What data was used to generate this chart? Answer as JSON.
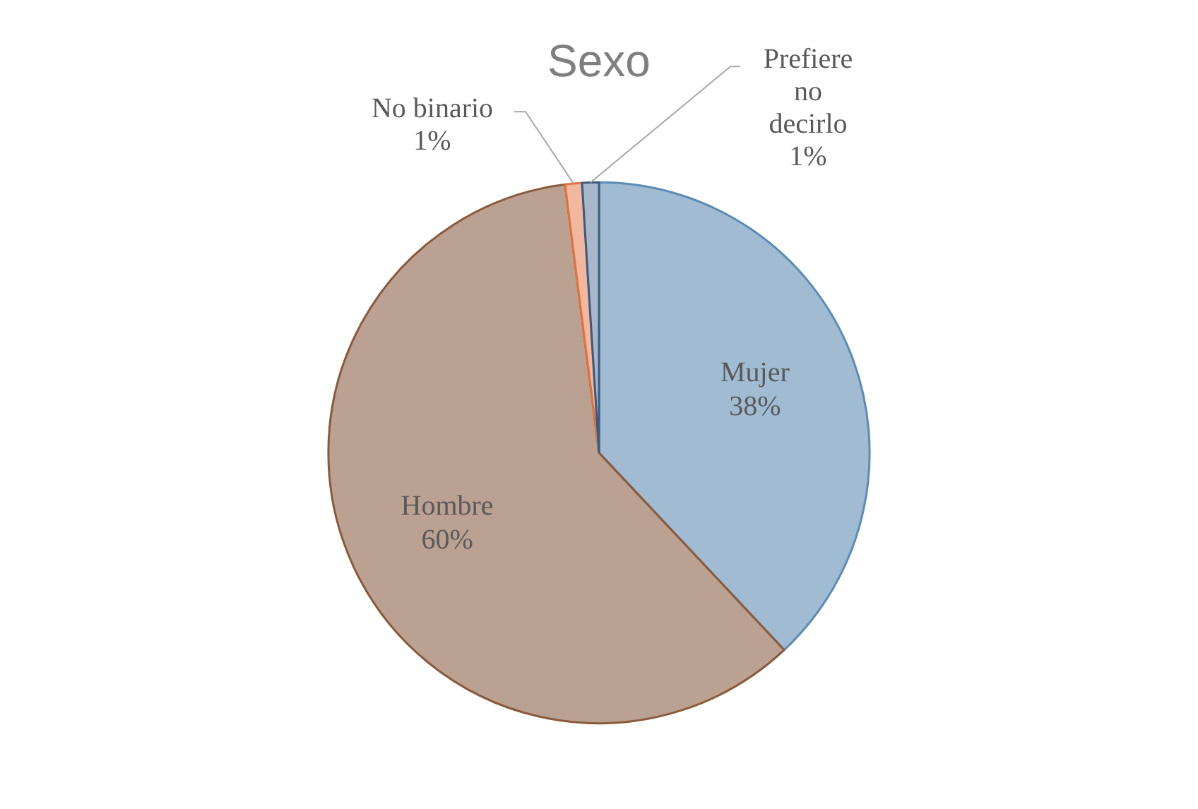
{
  "chart_data": {
    "type": "pie",
    "title": "Sexo",
    "categories": [
      "Mujer",
      "Hombre",
      "No binario",
      "Prefiere no decirlo"
    ],
    "values": [
      38,
      60,
      1,
      1
    ],
    "value_labels": [
      "38%",
      "60%",
      "1%",
      "1%"
    ],
    "colors": [
      "#a0bbd2",
      "#bba192",
      "#f2b79f",
      "#a8b8ca"
    ],
    "legend": false
  }
}
